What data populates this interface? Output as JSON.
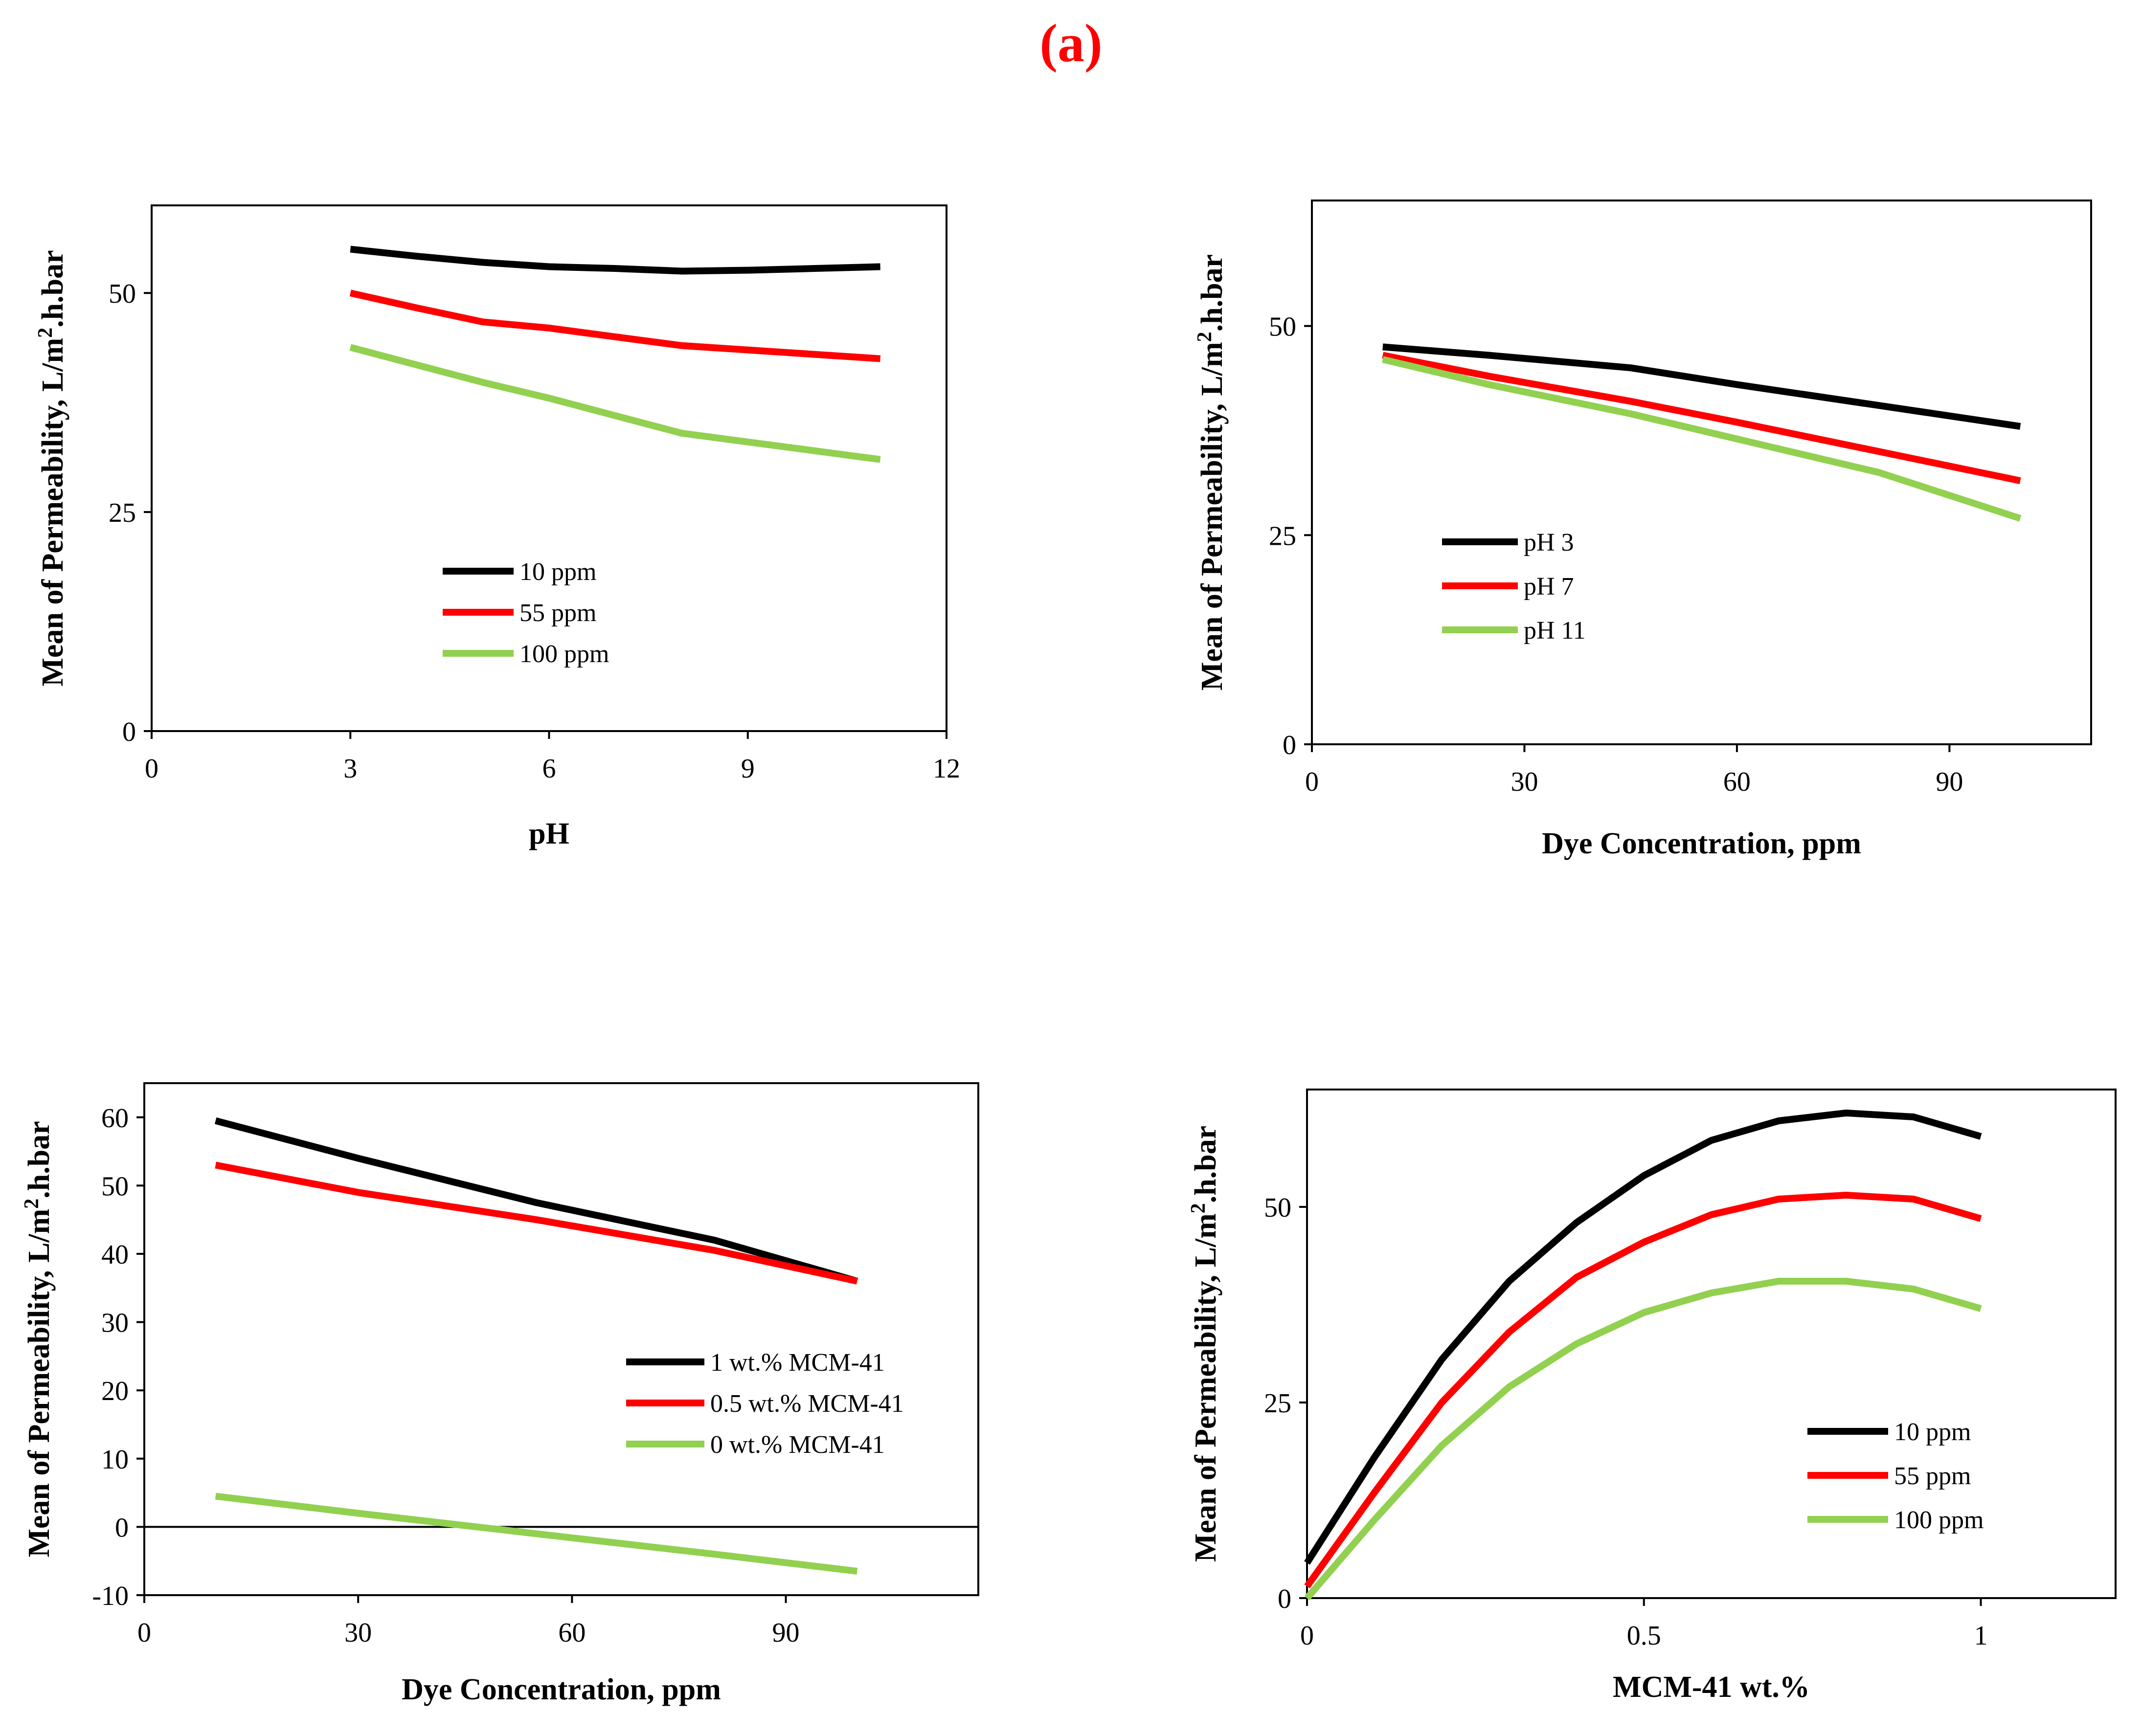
{
  "figure_title": "(a)",
  "colors": {
    "black": "#000000",
    "red": "#ff0000",
    "green": "#92d050"
  },
  "chart_data": [
    {
      "id": "c1",
      "type": "line",
      "xlabel": "pH",
      "ylabel_parts": [
        "Mean of Permeability, L/m",
        "2",
        ".h.bar"
      ],
      "xlim": [
        0,
        12
      ],
      "ylim": [
        0,
        60
      ],
      "xticks": [
        0,
        3,
        6,
        9,
        12
      ],
      "xtick_labels": [
        "0",
        "3",
        "6",
        "9",
        "12"
      ],
      "yticks": [
        0,
        25,
        50
      ],
      "ytick_labels": [
        "0",
        "25",
        "50"
      ],
      "zero_line": false,
      "legend_position": "lower-middle",
      "series": [
        {
          "name": "10 ppm",
          "color": "#000000",
          "x": [
            3,
            4,
            5,
            6,
            7,
            8,
            9,
            10,
            11
          ],
          "y": [
            55.0,
            54.2,
            53.5,
            53.0,
            52.8,
            52.5,
            52.6,
            52.8,
            53.0
          ]
        },
        {
          "name": "55 ppm",
          "color": "#ff0000",
          "x": [
            3,
            4,
            5,
            6,
            7,
            8,
            9,
            10,
            11
          ],
          "y": [
            50.0,
            48.3,
            46.7,
            46.0,
            45.0,
            44.0,
            43.5,
            43.0,
            42.5
          ]
        },
        {
          "name": "100 ppm",
          "color": "#92d050",
          "x": [
            3,
            4,
            5,
            6,
            7,
            8,
            9,
            10,
            11
          ],
          "y": [
            43.8,
            41.8,
            39.8,
            38.0,
            36.0,
            34.0,
            33.0,
            32.0,
            31.0
          ]
        }
      ]
    },
    {
      "id": "c2",
      "type": "line",
      "xlabel": "Dye Concentration, ppm",
      "ylabel_parts": [
        "Mean of Permeability, L/m",
        "2",
        ".h.bar"
      ],
      "xlim": [
        0,
        110
      ],
      "ylim": [
        0,
        65
      ],
      "xticks": [
        0,
        30,
        60,
        90
      ],
      "xtick_labels": [
        "0",
        "30",
        "60",
        "90"
      ],
      "yticks": [
        0,
        25,
        50
      ],
      "ytick_labels": [
        "0",
        "25",
        "50"
      ],
      "zero_line": false,
      "legend_position": "middle-left",
      "series": [
        {
          "name": "pH 3",
          "color": "#000000",
          "x": [
            10,
            25,
            45,
            60,
            80,
            100
          ],
          "y": [
            47.5,
            46.5,
            45.0,
            43.0,
            40.5,
            38.0
          ]
        },
        {
          "name": "pH 7",
          "color": "#ff0000",
          "x": [
            10,
            25,
            45,
            60,
            80,
            100
          ],
          "y": [
            46.5,
            44.0,
            41.0,
            38.5,
            35.0,
            31.5
          ]
        },
        {
          "name": "pH 11",
          "color": "#92d050",
          "x": [
            10,
            25,
            45,
            60,
            80,
            100
          ],
          "y": [
            46.0,
            43.0,
            39.5,
            36.5,
            32.5,
            27.0
          ]
        }
      ]
    },
    {
      "id": "c3",
      "type": "line",
      "xlabel": "Dye Concentration, ppm",
      "ylabel_parts": [
        "Mean of Permeability, L/m",
        "2",
        ".h.bar"
      ],
      "xlim": [
        0,
        117
      ],
      "ylim": [
        -10,
        65
      ],
      "xticks": [
        0,
        30,
        60,
        90
      ],
      "xtick_labels": [
        "0",
        "30",
        "60",
        "90"
      ],
      "yticks": [
        -10,
        0,
        10,
        20,
        30,
        40,
        50,
        60
      ],
      "ytick_labels": [
        "-10",
        "0",
        "10",
        "20",
        "30",
        "40",
        "50",
        "60"
      ],
      "zero_line": true,
      "legend_position": "middle-right",
      "series": [
        {
          "name": "1 wt.% MCM-41",
          "color": "#000000",
          "x": [
            10,
            30,
            55,
            80,
            100
          ],
          "y": [
            59.5,
            54.0,
            47.5,
            42.0,
            36.0
          ]
        },
        {
          "name": "0.5 wt.% MCM-41",
          "color": "#ff0000",
          "x": [
            10,
            30,
            55,
            80,
            100
          ],
          "y": [
            53.0,
            49.0,
            45.0,
            40.5,
            36.0
          ]
        },
        {
          "name": "0 wt.% MCM-41",
          "color": "#92d050",
          "x": [
            10,
            30,
            55,
            80,
            100
          ],
          "y": [
            4.5,
            2.0,
            -1.0,
            -4.0,
            -6.5
          ]
        }
      ]
    },
    {
      "id": "c4",
      "type": "line",
      "xlabel": "MCM-41 wt.%",
      "ylabel_parts": [
        "Mean of Permeability, L/m",
        "2",
        ".h.bar"
      ],
      "xlim": [
        0,
        1.2
      ],
      "ylim": [
        0,
        65
      ],
      "xticks": [
        0,
        0.5,
        1
      ],
      "xtick_labels": [
        "0",
        "0.5",
        "1"
      ],
      "yticks": [
        0,
        25,
        50
      ],
      "ytick_labels": [
        "0",
        "25",
        "50"
      ],
      "zero_line": false,
      "legend_position": "lower-right",
      "series": [
        {
          "name": "10 ppm",
          "color": "#000000",
          "x": [
            0,
            0.1,
            0.2,
            0.3,
            0.4,
            0.5,
            0.6,
            0.7,
            0.8,
            0.9,
            1.0
          ],
          "y": [
            4.5,
            18.0,
            30.5,
            40.5,
            48.0,
            54.0,
            58.5,
            61.0,
            62.0,
            61.5,
            59.0
          ]
        },
        {
          "name": "55 ppm",
          "color": "#ff0000",
          "x": [
            0,
            0.1,
            0.2,
            0.3,
            0.4,
            0.5,
            0.6,
            0.7,
            0.8,
            0.9,
            1.0
          ],
          "y": [
            1.5,
            13.5,
            25.0,
            34.0,
            41.0,
            45.5,
            49.0,
            51.0,
            51.5,
            51.0,
            48.5
          ]
        },
        {
          "name": "100 ppm",
          "color": "#92d050",
          "x": [
            0,
            0.1,
            0.2,
            0.3,
            0.4,
            0.5,
            0.6,
            0.7,
            0.8,
            0.9,
            1.0
          ],
          "y": [
            0,
            10.0,
            19.5,
            27.0,
            32.5,
            36.5,
            39.0,
            40.5,
            40.5,
            39.5,
            37.0
          ]
        }
      ]
    }
  ]
}
